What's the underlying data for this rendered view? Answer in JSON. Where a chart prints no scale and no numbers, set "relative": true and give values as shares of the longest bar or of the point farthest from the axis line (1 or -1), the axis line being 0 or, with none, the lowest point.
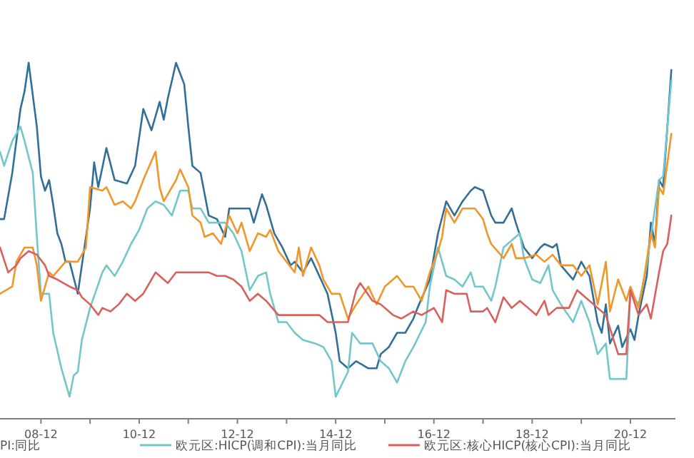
{
  "chart_data": {
    "type": "line",
    "relative": true,
    "legend": "bottom",
    "xlim": [
      "2008-02",
      "2021-11"
    ],
    "xticks": [
      {
        "value": "2008-12",
        "label": "08-12"
      },
      {
        "value": "2009-12",
        "label": null
      },
      {
        "value": "2010-12",
        "label": "10-12"
      },
      {
        "value": "2011-12",
        "label": null
      },
      {
        "value": "2012-12",
        "label": "12-12"
      },
      {
        "value": "2013-12",
        "label": null
      },
      {
        "value": "2014-12",
        "label": "14-12"
      },
      {
        "value": "2015-12",
        "label": null
      },
      {
        "value": "2016-12",
        "label": "16-12"
      },
      {
        "value": "2017-12",
        "label": null
      },
      {
        "value": "2018-12",
        "label": "18-12"
      },
      {
        "value": "2019-12",
        "label": null
      },
      {
        "value": "2020-12",
        "label": "20-12"
      }
    ],
    "annotations": [
      "PI:同比"
    ],
    "series": [
      {
        "color": "#2f6f98",
        "x": [
          "2008-02",
          "2008-03",
          "2008-05",
          "2008-07",
          "2008-08",
          "2008-09",
          "2008-10",
          "2008-11",
          "2008-12",
          "2009-01",
          "2009-02",
          "2009-03",
          "2009-04",
          "2009-05",
          "2009-06",
          "2009-07",
          "2009-09",
          "2009-10",
          "2009-12",
          "2010-01",
          "2010-02",
          "2010-04",
          "2010-06",
          "2010-09",
          "2010-11",
          "2011-01",
          "2011-03",
          "2011-05",
          "2011-06",
          "2011-07",
          "2011-09",
          "2011-11",
          "2011-12",
          "2012-01",
          "2012-03",
          "2012-04",
          "2012-05",
          "2012-07",
          "2012-09",
          "2012-10",
          "2012-12",
          "2013-03",
          "2013-04",
          "2013-06",
          "2013-07",
          "2013-09",
          "2013-11",
          "2014-01",
          "2014-02",
          "2014-04",
          "2014-06",
          "2014-08",
          "2014-10",
          "2014-12",
          "2015-01",
          "2015-03",
          "2015-05",
          "2015-08",
          "2015-10",
          "2015-11",
          "2016-01",
          "2016-03",
          "2016-05",
          "2016-07",
          "2016-08",
          "2016-11",
          "2017-01",
          "2017-03",
          "2017-05",
          "2017-07",
          "2017-09",
          "2017-10",
          "2017-12",
          "2018-02",
          "2018-03",
          "2018-05",
          "2018-07",
          "2018-08",
          "2018-10",
          "2018-12",
          "2019-02",
          "2019-03",
          "2019-05",
          "2019-06",
          "2019-07",
          "2019-10",
          "2019-12",
          "2020-02",
          "2020-04",
          "2020-05",
          "2020-06",
          "2020-07",
          "2020-09",
          "2020-10",
          "2020-12",
          "2021-01",
          "2021-02",
          "2021-04",
          "2021-05",
          "2021-06",
          "2021-07",
          "2021-08",
          "2021-10"
        ],
        "values": [
          0.56,
          0.56,
          0.69,
          0.87,
          0.92,
          1.0,
          0.91,
          0.82,
          0.68,
          0.64,
          0.67,
          0.6,
          0.52,
          0.49,
          0.44,
          0.44,
          0.35,
          0.43,
          0.59,
          0.72,
          0.65,
          0.76,
          0.67,
          0.66,
          0.71,
          0.87,
          0.81,
          0.89,
          0.84,
          0.9,
          1.0,
          0.94,
          0.82,
          0.71,
          0.69,
          0.63,
          0.57,
          0.56,
          0.51,
          0.59,
          0.59,
          0.59,
          0.55,
          0.63,
          0.6,
          0.52,
          0.48,
          0.43,
          0.44,
          0.41,
          0.45,
          0.4,
          0.35,
          0.24,
          0.16,
          0.14,
          0.16,
          0.14,
          0.14,
          0.18,
          0.2,
          0.24,
          0.24,
          0.28,
          0.31,
          0.39,
          0.52,
          0.61,
          0.57,
          0.61,
          0.64,
          0.65,
          0.64,
          0.57,
          0.55,
          0.55,
          0.59,
          0.55,
          0.48,
          0.45,
          0.48,
          0.49,
          0.48,
          0.49,
          0.43,
          0.39,
          0.44,
          0.4,
          0.27,
          0.24,
          0.32,
          0.21,
          0.26,
          0.2,
          0.25,
          0.22,
          0.29,
          0.4,
          0.55,
          0.49,
          0.67,
          0.65,
          0.98
        ]
      },
      {
        "name": "欧元区:HICP(调和CPI):当月同比",
        "color": "#73c6c9",
        "x": [
          "2008-02",
          "2008-03",
          "2008-05",
          "2008-07",
          "2008-08",
          "2008-10",
          "2008-11",
          "2008-12",
          "2009-02",
          "2009-03",
          "2009-05",
          "2009-07",
          "2009-08",
          "2009-09",
          "2009-10",
          "2009-12",
          "2010-03",
          "2010-04",
          "2010-06",
          "2010-08",
          "2010-10",
          "2010-12",
          "2011-02",
          "2011-04",
          "2011-06",
          "2011-08",
          "2011-10",
          "2011-12",
          "2012-01",
          "2012-03",
          "2012-05",
          "2012-07",
          "2012-09",
          "2012-11",
          "2013-01",
          "2013-03",
          "2013-05",
          "2013-07",
          "2013-08",
          "2013-10",
          "2013-12",
          "2014-02",
          "2014-04",
          "2014-07",
          "2014-09",
          "2014-11",
          "2014-12",
          "2015-03",
          "2015-04",
          "2015-06",
          "2015-09",
          "2015-11",
          "2016-01",
          "2016-03",
          "2016-05",
          "2016-07",
          "2016-10",
          "2016-11",
          "2017-01",
          "2017-03",
          "2017-05",
          "2017-07",
          "2017-09",
          "2017-10",
          "2017-12",
          "2018-02",
          "2018-03",
          "2018-05",
          "2018-07",
          "2018-09",
          "2018-10",
          "2018-12",
          "2019-02",
          "2019-04",
          "2019-05",
          "2019-07",
          "2019-10",
          "2019-12",
          "2020-02",
          "2020-04",
          "2020-06",
          "2020-07",
          "2020-11",
          "2020-12",
          "2021-02",
          "2021-04",
          "2021-05",
          "2021-07",
          "2021-08",
          "2021-10"
        ],
        "values": [
          0.75,
          0.71,
          0.78,
          0.82,
          0.78,
          0.69,
          0.51,
          0.35,
          0.35,
          0.24,
          0.14,
          0.06,
          0.12,
          0.13,
          0.22,
          0.31,
          0.41,
          0.43,
          0.4,
          0.44,
          0.49,
          0.53,
          0.59,
          0.61,
          0.6,
          0.57,
          0.64,
          0.64,
          0.59,
          0.59,
          0.55,
          0.55,
          0.55,
          0.52,
          0.47,
          0.36,
          0.4,
          0.41,
          0.35,
          0.27,
          0.27,
          0.24,
          0.22,
          0.21,
          0.2,
          0.16,
          0.06,
          0.13,
          0.24,
          0.21,
          0.21,
          0.16,
          0.14,
          0.1,
          0.16,
          0.2,
          0.27,
          0.37,
          0.48,
          0.4,
          0.39,
          0.37,
          0.41,
          0.37,
          0.37,
          0.33,
          0.37,
          0.48,
          0.5,
          0.52,
          0.45,
          0.39,
          0.38,
          0.43,
          0.36,
          0.32,
          0.27,
          0.33,
          0.27,
          0.18,
          0.21,
          0.11,
          0.11,
          0.35,
          0.32,
          0.43,
          0.51,
          0.67,
          0.68,
          0.95
        ]
      },
      {
        "color": "#f0962a",
        "x": [
          "2008-02",
          "2008-05",
          "2008-06",
          "2008-08",
          "2008-10",
          "2008-11",
          "2008-12",
          "2009-02",
          "2009-03",
          "2009-06",
          "2009-08",
          "2009-09",
          "2009-11",
          "2009-12",
          "2010-03",
          "2010-04",
          "2010-06",
          "2010-08",
          "2010-10",
          "2010-11",
          "2011-01",
          "2011-04",
          "2011-05",
          "2011-06",
          "2011-09",
          "2011-10",
          "2011-12",
          "2012-01",
          "2012-03",
          "2012-04",
          "2012-06",
          "2012-08",
          "2012-10",
          "2012-12",
          "2013-01",
          "2013-03",
          "2013-05",
          "2013-07",
          "2013-08",
          "2013-10",
          "2013-12",
          "2014-02",
          "2014-03",
          "2014-04",
          "2014-06",
          "2014-08",
          "2014-09",
          "2014-11",
          "2015-01",
          "2015-03",
          "2015-05",
          "2015-08",
          "2015-10",
          "2015-12",
          "2016-03",
          "2016-05",
          "2016-07",
          "2016-09",
          "2016-11",
          "2017-01",
          "2017-02",
          "2017-03",
          "2017-05",
          "2017-07",
          "2017-09",
          "2017-10",
          "2017-12",
          "2018-01",
          "2018-02",
          "2018-05",
          "2018-07",
          "2018-08",
          "2018-10",
          "2019-01",
          "2019-03",
          "2019-05",
          "2019-07",
          "2019-10",
          "2019-12",
          "2020-02",
          "2020-04",
          "2020-06",
          "2020-07",
          "2020-09",
          "2020-11",
          "2020-12",
          "2021-02",
          "2021-03",
          "2021-05",
          "2021-06",
          "2021-07",
          "2021-08",
          "2021-10"
        ],
        "values": [
          0.35,
          0.37,
          0.44,
          0.48,
          0.48,
          0.43,
          0.33,
          0.41,
          0.4,
          0.44,
          0.44,
          0.44,
          0.48,
          0.65,
          0.64,
          0.65,
          0.6,
          0.61,
          0.59,
          0.61,
          0.67,
          0.75,
          0.65,
          0.61,
          0.67,
          0.7,
          0.65,
          0.57,
          0.55,
          0.51,
          0.52,
          0.49,
          0.57,
          0.52,
          0.55,
          0.47,
          0.52,
          0.51,
          0.53,
          0.47,
          0.44,
          0.41,
          0.48,
          0.4,
          0.48,
          0.43,
          0.39,
          0.35,
          0.35,
          0.28,
          0.32,
          0.37,
          0.32,
          0.37,
          0.4,
          0.37,
          0.37,
          0.33,
          0.41,
          0.47,
          0.51,
          0.59,
          0.55,
          0.59,
          0.59,
          0.59,
          0.56,
          0.52,
          0.49,
          0.45,
          0.49,
          0.45,
          0.45,
          0.46,
          0.44,
          0.46,
          0.43,
          0.43,
          0.4,
          0.43,
          0.32,
          0.44,
          0.3,
          0.39,
          0.33,
          0.37,
          0.31,
          0.37,
          0.52,
          0.48,
          0.65,
          0.63,
          0.8
        ]
      },
      {
        "name": "欧元区:核心HICP(核心CPI):当月同比",
        "color": "#d9605c",
        "x": [
          "2008-02",
          "2008-04",
          "2008-06",
          "2008-07",
          "2008-09",
          "2008-11",
          "2009-01",
          "2009-02",
          "2009-04",
          "2009-07",
          "2009-09",
          "2009-10",
          "2009-12",
          "2010-02",
          "2010-03",
          "2010-05",
          "2010-07",
          "2010-09",
          "2010-11",
          "2011-01",
          "2011-04",
          "2011-05",
          "2011-07",
          "2011-09",
          "2012-01",
          "2012-03",
          "2012-05",
          "2012-07",
          "2012-09",
          "2012-11",
          "2013-01",
          "2013-03",
          "2013-05",
          "2013-07",
          "2013-10",
          "2013-12",
          "2014-02",
          "2014-04",
          "2014-08",
          "2014-10",
          "2015-01",
          "2015-03",
          "2015-05",
          "2015-06",
          "2015-09",
          "2015-11",
          "2016-02",
          "2016-04",
          "2016-07",
          "2016-09",
          "2016-12",
          "2017-02",
          "2017-03",
          "2017-05",
          "2017-08",
          "2017-09",
          "2017-12",
          "2018-01",
          "2018-03",
          "2018-05",
          "2018-07",
          "2018-09",
          "2018-11",
          "2019-01",
          "2019-03",
          "2019-04",
          "2019-06",
          "2019-09",
          "2019-11",
          "2020-01",
          "2020-04",
          "2020-06",
          "2020-09",
          "2020-11",
          "2020-12",
          "2021-02",
          "2021-04",
          "2021-05",
          "2021-07",
          "2021-08",
          "2021-09",
          "2021-10"
        ],
        "values": [
          0.48,
          0.41,
          0.43,
          0.45,
          0.47,
          0.46,
          0.43,
          0.4,
          0.39,
          0.37,
          0.36,
          0.34,
          0.32,
          0.29,
          0.31,
          0.3,
          0.32,
          0.35,
          0.33,
          0.35,
          0.41,
          0.4,
          0.38,
          0.41,
          0.41,
          0.41,
          0.41,
          0.4,
          0.4,
          0.39,
          0.37,
          0.33,
          0.35,
          0.33,
          0.29,
          0.29,
          0.29,
          0.29,
          0.29,
          0.27,
          0.27,
          0.27,
          0.36,
          0.38,
          0.33,
          0.32,
          0.29,
          0.28,
          0.3,
          0.29,
          0.31,
          0.27,
          0.36,
          0.35,
          0.35,
          0.3,
          0.3,
          0.31,
          0.27,
          0.34,
          0.31,
          0.33,
          0.31,
          0.29,
          0.33,
          0.29,
          0.31,
          0.31,
          0.36,
          0.34,
          0.31,
          0.29,
          0.18,
          0.18,
          0.36,
          0.29,
          0.32,
          0.28,
          0.41,
          0.47,
          0.49,
          0.57
        ]
      }
    ]
  }
}
